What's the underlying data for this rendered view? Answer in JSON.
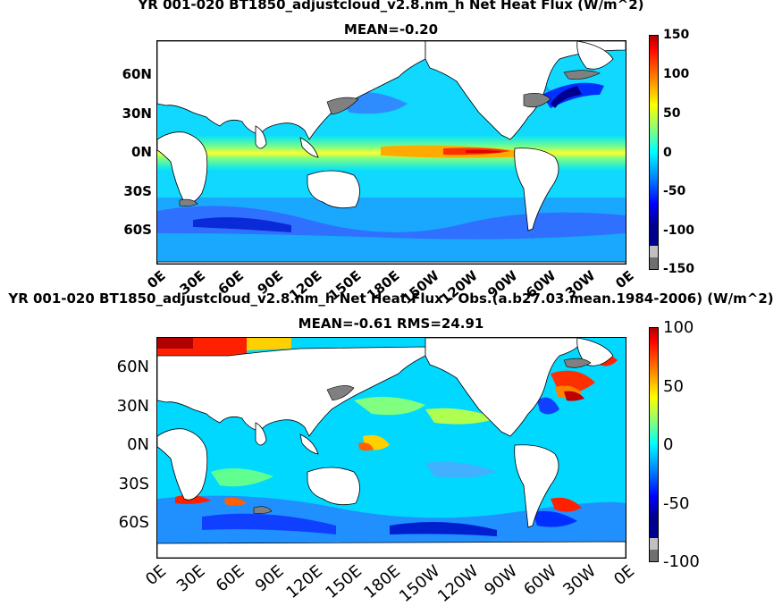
{
  "panels": [
    {
      "title_line1": "YR 001-020 BT1850_adjustcloud_v2.8.nm_h  Net Heat Flux (W/m^2)",
      "title_line2": "MEAN=-0.20",
      "y_ticks": [
        "60N",
        "30N",
        "0N",
        "30S",
        "60S"
      ],
      "x_ticks": [
        "0E",
        "30E",
        "60E",
        "90E",
        "120E",
        "150E",
        "180E",
        "150W",
        "120W",
        "90W",
        "60W",
        "30W",
        "0E"
      ],
      "colorbar_ticks": [
        "150",
        "100",
        "50",
        "0",
        "-50",
        "-100",
        "-150"
      ]
    },
    {
      "title_line1": "YR 001-020 BT1850_adjustcloud_v2.8.nm_h  Net Heat Flux - Obs.(a.b27.03.mean.1984-2006) (W/m^2)",
      "title_line2": "MEAN=-0.61 RMS=24.91",
      "y_ticks": [
        "60N",
        "30N",
        "0N",
        "30S",
        "60S"
      ],
      "x_ticks": [
        "0E",
        "30E",
        "60E",
        "90E",
        "120E",
        "150E",
        "180E",
        "150W",
        "120W",
        "90W",
        "60W",
        "30W",
        "0E"
      ],
      "colorbar_ticks": [
        "100",
        "50",
        "0",
        "-50",
        "-100"
      ]
    }
  ],
  "chart_data": [
    {
      "type": "heatmap",
      "title": "YR 001-020 BT1850_adjustcloud_v2.8.nm_h  Net Heat Flux (W/m^2)",
      "subtitle": "MEAN=-0.20",
      "x_ticks": [
        "0E",
        "30E",
        "60E",
        "90E",
        "120E",
        "150E",
        "180E",
        "150W",
        "120W",
        "90W",
        "60W",
        "30W",
        "0E"
      ],
      "y_ticks": [
        "60N",
        "30N",
        "0N",
        "30S",
        "60S"
      ],
      "xlim": [
        0,
        360
      ],
      "ylim": [
        -80,
        90
      ],
      "colorbar_range": [
        -150,
        150
      ],
      "colorbar_ticks": [
        150,
        100,
        50,
        0,
        -50,
        -100,
        -150
      ],
      "colormap": [
        "#00008f",
        "#0000ff",
        "#0080ff",
        "#00ffff",
        "#80ff80",
        "#ffff00",
        "#ff8000",
        "#ff0000",
        "#800000"
      ]
    },
    {
      "type": "heatmap",
      "title": "YR 001-020 BT1850_adjustcloud_v2.8.nm_h  Net Heat Flux - Obs.(a.b27.03.mean.1984-2006) (W/m^2)",
      "subtitle": "MEAN=-0.61 RMS=24.91",
      "x_ticks": [
        "0E",
        "30E",
        "60E",
        "90E",
        "120E",
        "150E",
        "180E",
        "150W",
        "120W",
        "90W",
        "60W",
        "30W",
        "0E"
      ],
      "y_ticks": [
        "60N",
        "30N",
        "0N",
        "30S",
        "60S"
      ],
      "xlim": [
        0,
        360
      ],
      "ylim": [
        -80,
        90
      ],
      "colorbar_range": [
        -100,
        100
      ],
      "colorbar_ticks": [
        100,
        50,
        0,
        -50,
        -100
      ],
      "colormap": [
        "#00008f",
        "#0000ff",
        "#0080ff",
        "#00ffff",
        "#80ff80",
        "#ffff00",
        "#ff8000",
        "#ff0000",
        "#800000"
      ]
    }
  ]
}
